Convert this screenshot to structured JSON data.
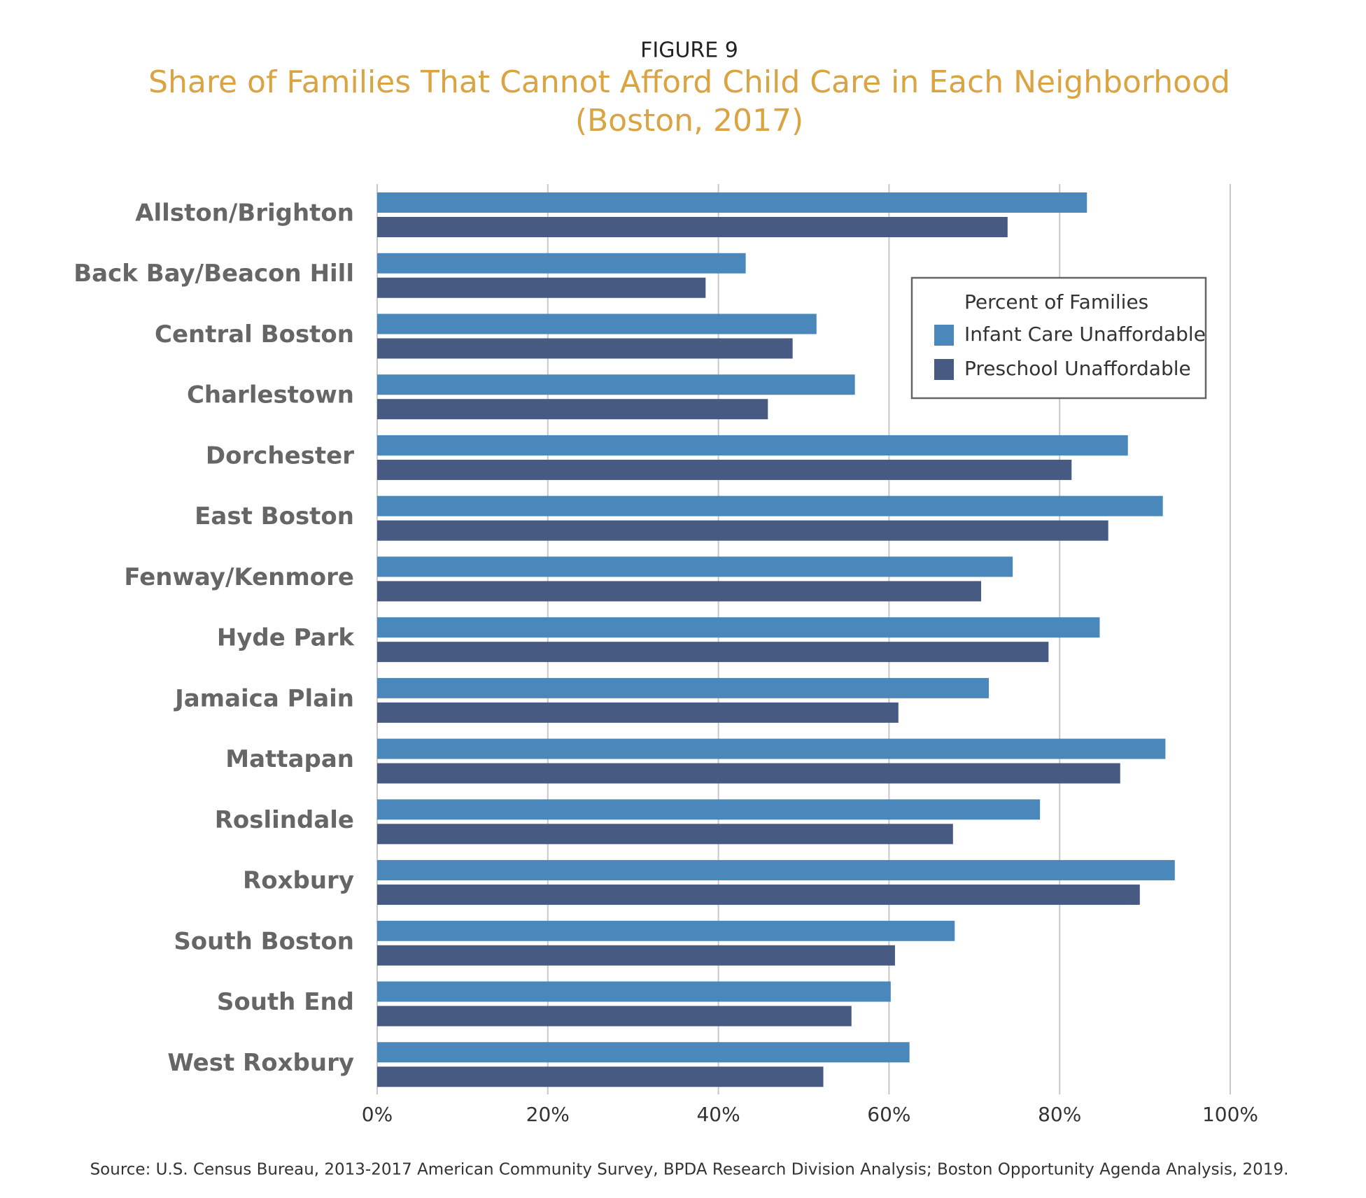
{
  "chart_data": {
    "type": "bar",
    "orientation": "horizontal",
    "figure_label": "FIGURE 9",
    "title": "Share of Families That Cannot Afford Child Care in Each Neighborhood",
    "subtitle": "(Boston, 2017)",
    "categories": [
      "Allston/Brighton",
      "Back Bay/Beacon Hill",
      "Central Boston",
      "Charlestown",
      "Dorchester",
      "East Boston",
      "Fenway/Kenmore",
      "Hyde Park",
      "Jamaica Plain",
      "Mattapan",
      "Roslindale",
      "Roxbury",
      "South Boston",
      "South End",
      "West Roxbury"
    ],
    "series": [
      {
        "name": "Infant Care Unaffordable",
        "color": "#4a88bb",
        "values": [
          83.2,
          43.2,
          51.5,
          56.0,
          88.0,
          92.1,
          74.5,
          84.7,
          71.7,
          92.4,
          77.7,
          93.5,
          67.7,
          60.2,
          62.4
        ]
      },
      {
        "name": "Preschool Unaffordable",
        "color": "#475a82",
        "values": [
          73.9,
          38.5,
          48.7,
          45.8,
          81.4,
          85.7,
          70.8,
          78.7,
          61.1,
          87.1,
          67.5,
          89.4,
          60.7,
          55.6,
          52.3
        ]
      }
    ],
    "legend_title": "Percent of Families",
    "legend_position": "upper right",
    "xlim": [
      0,
      100
    ],
    "xticks": [
      {
        "value": 0,
        "label": "0%"
      },
      {
        "value": 20,
        "label": "20%"
      },
      {
        "value": 40,
        "label": "40%"
      },
      {
        "value": 60,
        "label": "60%"
      },
      {
        "value": 80,
        "label": "80%"
      },
      {
        "value": 100,
        "label": "100%"
      }
    ],
    "grid": true,
    "source": "Source: U.S. Census Bureau, 2013-2017 American Community Survey, BPDA Research Division Analysis; Boston Opportunity Agenda Analysis, 2019."
  }
}
